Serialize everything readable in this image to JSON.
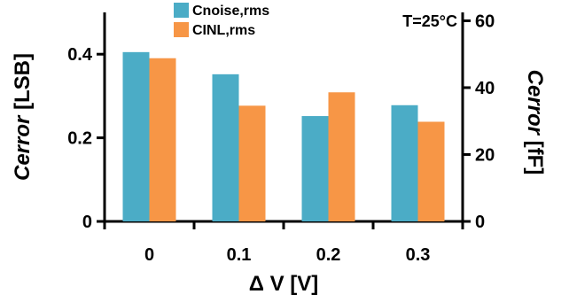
{
  "chart_data": {
    "type": "bar",
    "categories": [
      "0",
      "0.1",
      "0.2",
      "0.3"
    ],
    "series": [
      {
        "name": "Cnoise,rms",
        "axis": "left",
        "values": [
          0.405,
          0.352,
          0.252,
          0.278
        ],
        "color": "#4bacc6"
      },
      {
        "name": "CINL,rms",
        "axis": "right",
        "values": [
          48.8,
          34.6,
          38.6,
          29.8
        ],
        "color": "#f79646"
      }
    ],
    "xlabel": "Δ V [V]",
    "ylabel_left": {
      "italic": "Cerror",
      "unit": " [LSB]"
    },
    "ylabel_right": {
      "italic": "Cerror",
      "unit": " [fF]"
    },
    "ylim_left": [
      0,
      0.5
    ],
    "yticks_left": [
      "0",
      "0.2",
      "0.4"
    ],
    "yticks_left_values": [
      0,
      0.2,
      0.4
    ],
    "ylim_right": [
      0,
      62.5
    ],
    "yticks_right": [
      "0",
      "20",
      "40",
      "60"
    ],
    "yticks_right_values": [
      0,
      20,
      40,
      60
    ],
    "annotation": "T=25°C",
    "legend_position": "top-center",
    "grid": false
  }
}
